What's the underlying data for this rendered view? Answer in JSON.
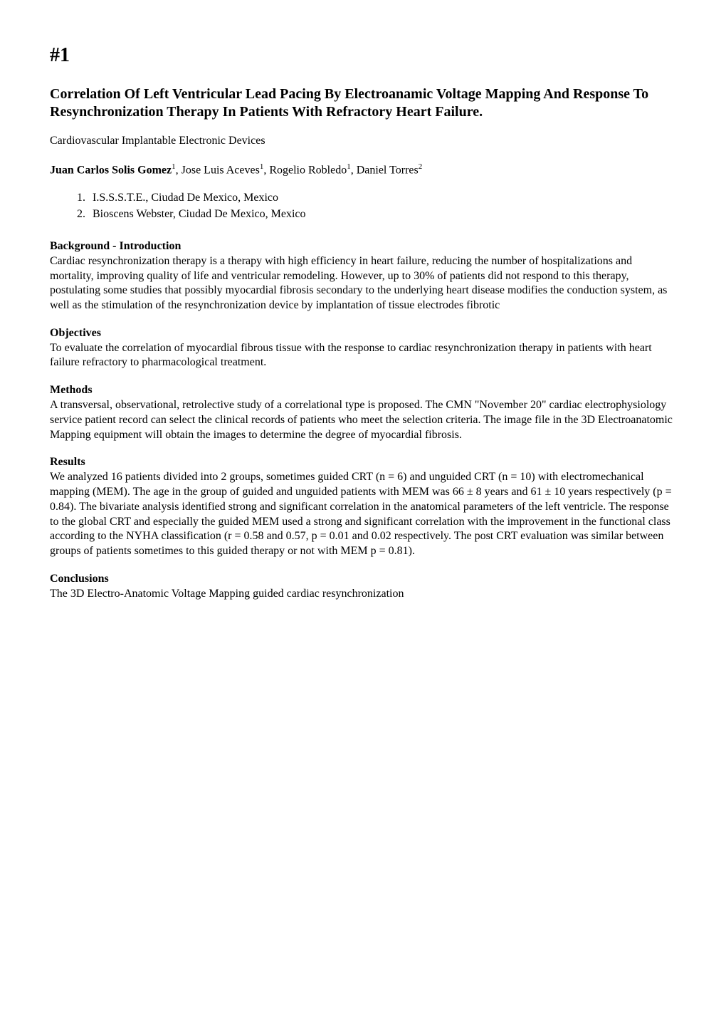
{
  "abstract_number": "#1",
  "title": "Correlation Of Left Ventricular Lead Pacing By Electroanamic Voltage Mapping And Response To Resynchronization Therapy In Patients With Refractory Heart Failure.",
  "category": "Cardiovascular Implantable Electronic Devices",
  "authors": {
    "first_author": "Juan Carlos Solis Gomez",
    "first_author_affiliation": "1",
    "coauthors": [
      {
        "name": "Jose Luis Aceves",
        "affiliation": "1"
      },
      {
        "name": "Rogelio Robledo",
        "affiliation": "1"
      },
      {
        "name": "Daniel Torres",
        "affiliation": "2"
      }
    ]
  },
  "affiliations": [
    {
      "number": "1.",
      "text": "I.S.S.S.T.E., Ciudad De Mexico, Mexico"
    },
    {
      "number": "2.",
      "text": "Bioscens Webster, Ciudad De Mexico, Mexico"
    }
  ],
  "sections": {
    "background": {
      "heading": "Background - Introduction",
      "body": "Cardiac resynchronization therapy is a therapy with high efficiency in heart failure, reducing the number of hospitalizations and mortality, improving quality of life and ventricular remodeling. However, up to 30% of patients did not respond to this therapy, postulating some studies that possibly myocardial fibrosis secondary to the underlying heart disease modifies the conduction system, as well as the stimulation of the resynchronization device by implantation of tissue electrodes fibrotic"
    },
    "objectives": {
      "heading": "Objectives",
      "body": "To evaluate the correlation of myocardial fibrous tissue with the response to cardiac resynchronization therapy in patients with heart failure refractory to pharmacological treatment."
    },
    "methods": {
      "heading": "Methods",
      "body": "A transversal, observational, retrolective study of a correlational type is proposed. The CMN \"November 20\" cardiac electrophysiology service patient record can select the clinical records of patients who meet the selection criteria. The image file in the 3D Electroanatomic Mapping equipment will obtain the images to determine the degree of myocardial fibrosis."
    },
    "results": {
      "heading": "Results",
      "body": "We analyzed 16 patients divided into 2 groups, sometimes guided CRT (n = 6) and unguided CRT (n = 10) with electromechanical mapping (MEM). The age in the group of guided and unguided patients with MEM was 66 ± 8 years and 61 ± 10 years respectively (p = 0.84). The bivariate analysis identified strong and significant correlation in the anatomical parameters of the left ventricle. The response to the global CRT and especially the guided MEM used a strong and significant correlation with the improvement in the functional class according to the NYHA classification (r = 0.58 and 0.57, p = 0.01 and 0.02 respectively. The post CRT evaluation was similar between groups of patients sometimes to this guided therapy or not with MEM p = 0.81)."
    },
    "conclusions": {
      "heading": "Conclusions",
      "body": "The 3D Electro-Anatomic Voltage Mapping guided cardiac resynchronization"
    }
  }
}
